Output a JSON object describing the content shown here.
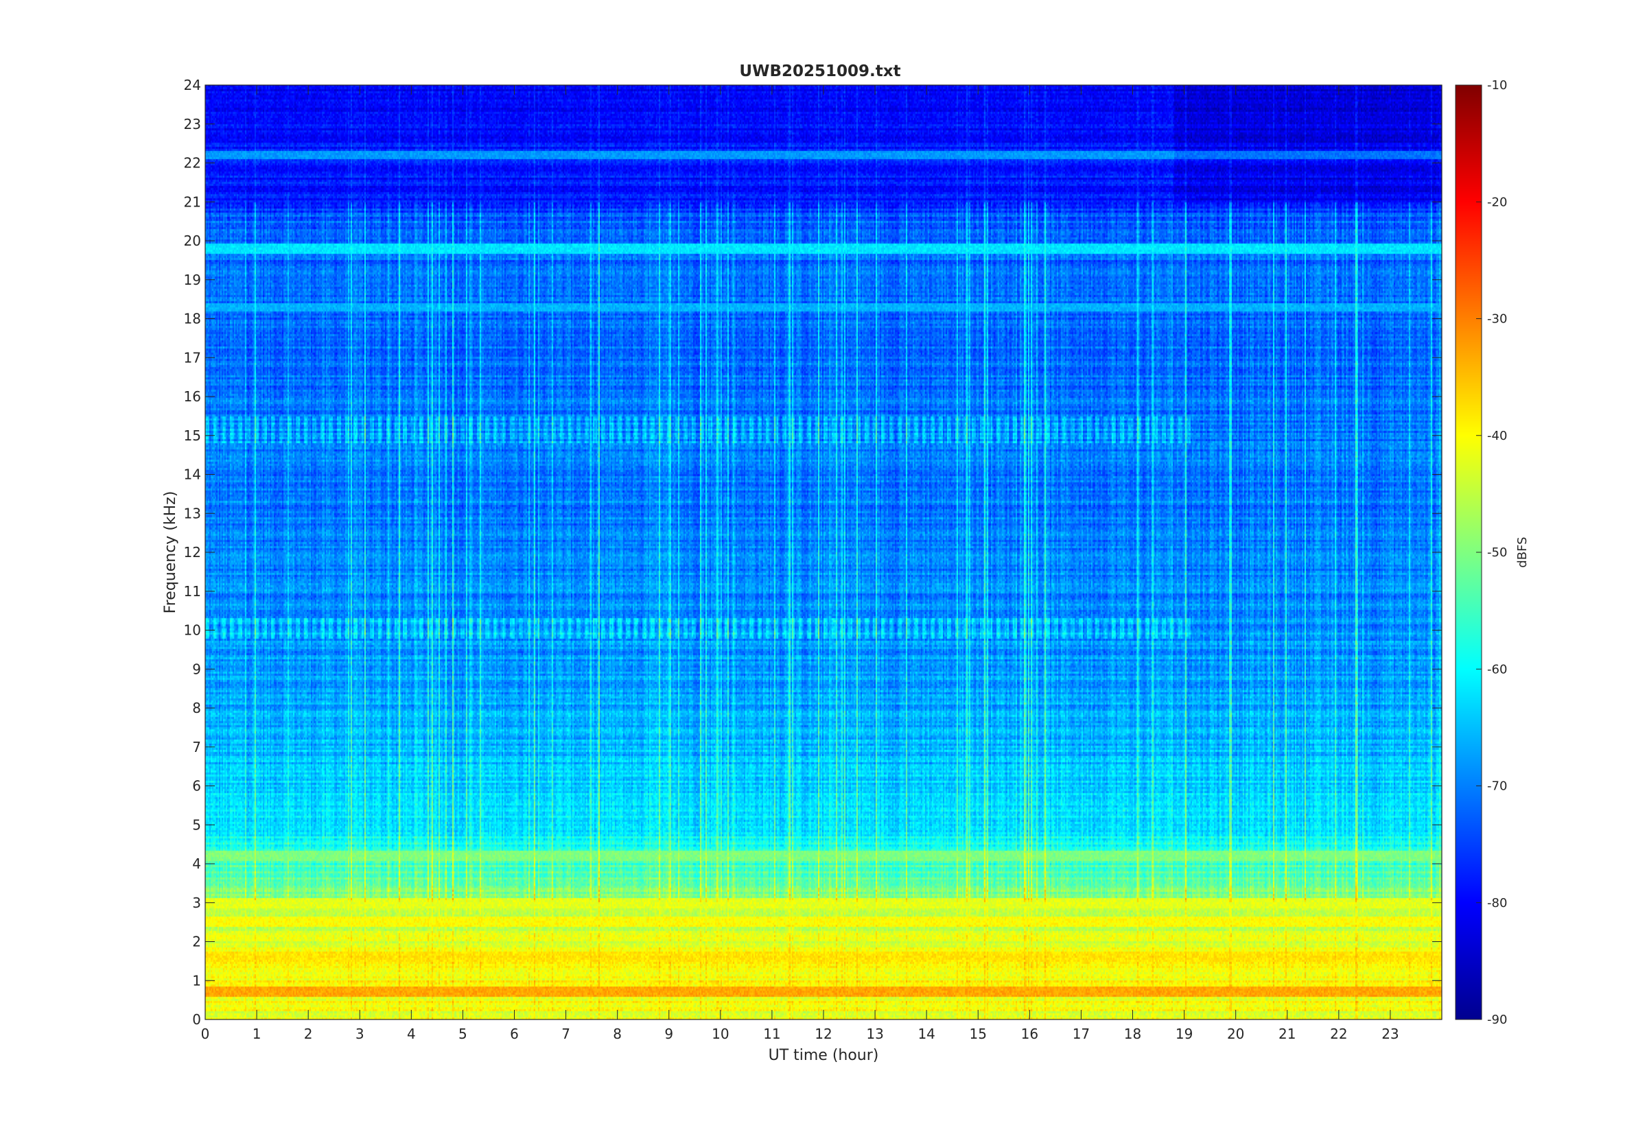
{
  "chart_data": {
    "type": "heatmap",
    "title": "UWB20251009.txt",
    "xlabel": "UT time (hour)",
    "ylabel": "Frequency (kHz)",
    "xlim": [
      0,
      24
    ],
    "ylim": [
      0,
      24
    ],
    "x_ticks": [
      0,
      1,
      2,
      3,
      4,
      5,
      6,
      7,
      8,
      9,
      10,
      11,
      12,
      13,
      14,
      15,
      16,
      17,
      18,
      19,
      20,
      21,
      22,
      23
    ],
    "y_ticks": [
      0,
      1,
      2,
      3,
      4,
      5,
      6,
      7,
      8,
      9,
      10,
      11,
      12,
      13,
      14,
      15,
      16,
      17,
      18,
      19,
      20,
      21,
      22,
      23,
      24
    ],
    "colormap": "jet",
    "colorbar": {
      "label": "dBFS",
      "range": [
        -90,
        -10
      ],
      "ticks": [
        -10,
        -20,
        -30,
        -40,
        -50,
        -60,
        -70,
        -80,
        -90
      ]
    },
    "grid": false,
    "features": {
      "horizontal_bands_khz": [
        {
          "freq": 19.8,
          "level_dbfs": -62
        },
        {
          "freq": 18.3,
          "level_dbfs": -66
        },
        {
          "freq": 22.2,
          "level_dbfs": -68
        },
        {
          "freq": 0.7,
          "level_dbfs": -33
        },
        {
          "freq": 1.6,
          "level_dbfs": -38
        },
        {
          "freq": 2.5,
          "level_dbfs": -40
        },
        {
          "freq": 3.0,
          "level_dbfs": -42
        },
        {
          "freq": 4.2,
          "level_dbfs": -50
        }
      ],
      "background_profile": [
        {
          "freq": 0,
          "level_dbfs": -42
        },
        {
          "freq": 1,
          "level_dbfs": -40
        },
        {
          "freq": 2.5,
          "level_dbfs": -44
        },
        {
          "freq": 4,
          "level_dbfs": -55
        },
        {
          "freq": 5,
          "level_dbfs": -62
        },
        {
          "freq": 8,
          "level_dbfs": -67
        },
        {
          "freq": 12,
          "level_dbfs": -70
        },
        {
          "freq": 20.5,
          "level_dbfs": -72
        },
        {
          "freq": 21,
          "level_dbfs": -78
        },
        {
          "freq": 24,
          "level_dbfs": -80
        }
      ]
    }
  }
}
